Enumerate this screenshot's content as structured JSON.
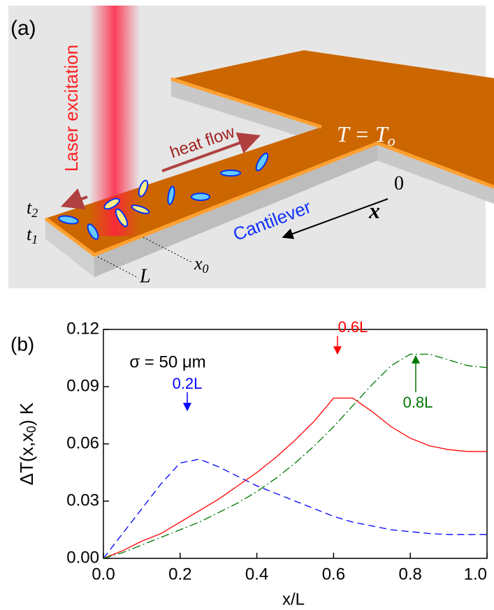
{
  "illustration": {
    "panel": "(a)",
    "laser": "Laser excitation",
    "heat": "heat flow",
    "temp": {
      "left": "T = T",
      "sub": "o"
    },
    "origin": "0",
    "axis": "x",
    "cantilever": "Cantilever",
    "t2": {
      "base": "t",
      "sub": "2"
    },
    "t1": {
      "base": "t",
      "sub": "1"
    },
    "length": "L",
    "x0": {
      "base": "x",
      "sub": "0"
    }
  },
  "chart_data": {
    "type": "line",
    "panel": "(b)",
    "x_label": "x/L",
    "y_label": {
      "text": "ΔT(x,x",
      "sub": "0",
      "tail": ") K"
    },
    "x": [
      0,
      0.05,
      0.1,
      0.15,
      0.2,
      0.25,
      0.3,
      0.35,
      0.4,
      0.45,
      0.5,
      0.55,
      0.6,
      0.65,
      0.7,
      0.75,
      0.8,
      0.85,
      0.9,
      0.95,
      1.0
    ],
    "series": [
      {
        "color": "#0000ff",
        "dash": "10 6",
        "values": [
          0,
          0.013,
          0.026,
          0.039,
          0.05,
          0.052,
          0.048,
          0.043,
          0.038,
          0.034,
          0.03,
          0.026,
          0.022,
          0.019,
          0.017,
          0.015,
          0.014,
          0.013,
          0.0125,
          0.0125,
          0.0125
        ]
      },
      {
        "color": "#ff0000",
        "dash": "none",
        "values": [
          0,
          0.004,
          0.009,
          0.013,
          0.019,
          0.025,
          0.031,
          0.038,
          0.045,
          0.053,
          0.062,
          0.072,
          0.084,
          0.084,
          0.077,
          0.069,
          0.063,
          0.059,
          0.057,
          0.056,
          0.056
        ]
      },
      {
        "color": "#007700",
        "dash": "12 4 2 4",
        "values": [
          0,
          0.003,
          0.007,
          0.011,
          0.015,
          0.019,
          0.024,
          0.029,
          0.035,
          0.042,
          0.05,
          0.059,
          0.069,
          0.08,
          0.091,
          0.101,
          0.107,
          0.107,
          0.104,
          0.101,
          0.1
        ]
      }
    ],
    "xlim": [
      0,
      1
    ],
    "ylim": [
      0,
      0.12
    ],
    "xticks": [
      {
        "value": 0,
        "label": "0.0"
      },
      0.2,
      0.4,
      0.6,
      0.8,
      {
        "value": 1,
        "label": "1.0"
      }
    ],
    "yticks": [
      {
        "value": 0,
        "label": "0.00"
      },
      0.03,
      0.06,
      0.09,
      0.12
    ],
    "annotations": [
      {
        "text": "σ = 50 μm",
        "color": "#000000"
      },
      {
        "text": "0.2L",
        "color": "#0000ff"
      },
      {
        "text": "0.6L",
        "color": "#ff0000"
      },
      {
        "text": "0.8L",
        "color": "#007700"
      }
    ]
  }
}
